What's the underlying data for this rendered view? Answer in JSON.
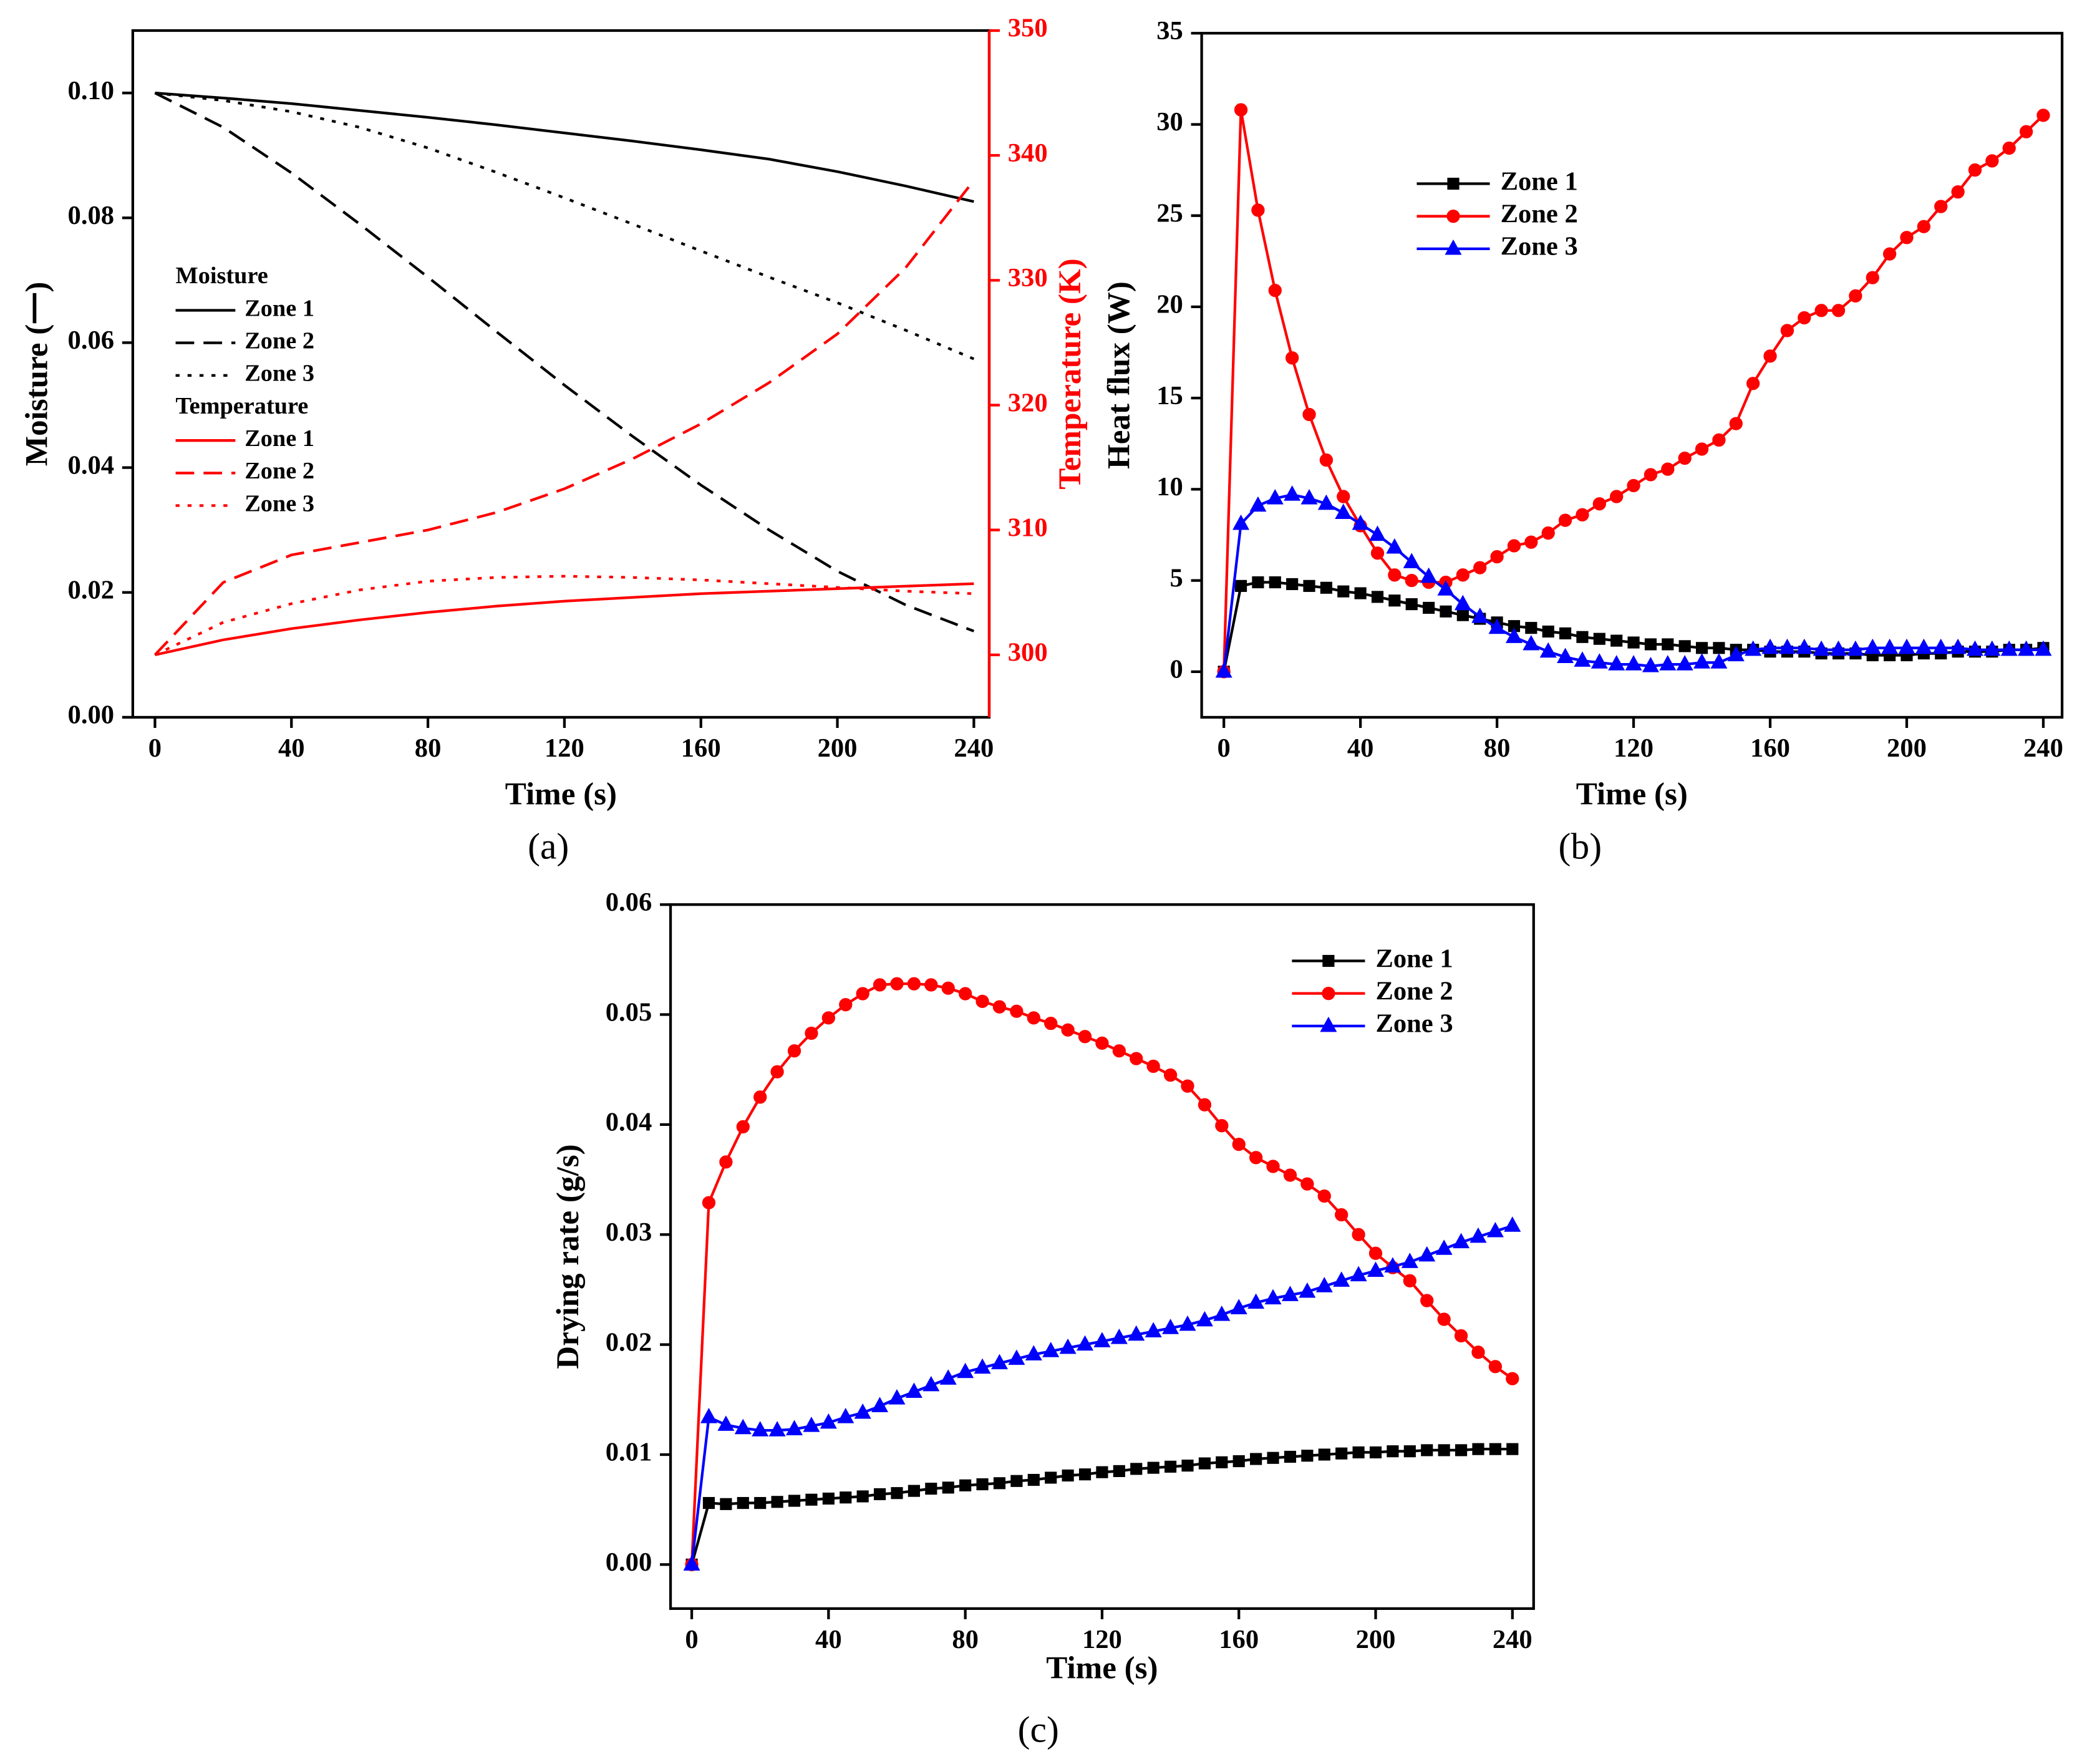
{
  "chart_data": [
    {
      "type": "line",
      "label": "(a)",
      "x_label": "Time (s)",
      "y_label": "Moisture (一)",
      "y2_label": "Temperature (K)",
      "y2_color": "#ff0000",
      "legend": "center-left",
      "legend_titles": [
        "Moisture",
        "Temperature"
      ],
      "xlim": [
        -6.5,
        244.5
      ],
      "xticks": [
        0,
        40,
        80,
        120,
        160,
        200,
        240
      ],
      "ylim": [
        0,
        0.11
      ],
      "yticks": [
        {
          "value": 0,
          "label": "0.00"
        },
        {
          "value": 0.02,
          "label": "0.02"
        },
        {
          "value": 0.04,
          "label": "0.04"
        },
        {
          "value": 0.06,
          "label": "0.06"
        },
        {
          "value": 0.08,
          "label": "0.08"
        },
        {
          "value": 0.1,
          "label": "0.10"
        }
      ],
      "y2lim": [
        295,
        350
      ],
      "y2ticks": [
        300,
        310,
        320,
        330,
        340,
        350
      ],
      "x": [
        0,
        20,
        40,
        60,
        80,
        100,
        120,
        140,
        160,
        180,
        200,
        220,
        240
      ],
      "series": [
        {
          "name": "Zone 1",
          "color": "#000000",
          "dash": "solid",
          "values": [
            0.1,
            0.0992,
            0.0983,
            0.0972,
            0.0961,
            0.0949,
            0.0936,
            0.0923,
            0.0909,
            0.0894,
            0.0874,
            0.0851,
            0.0826
          ]
        },
        {
          "name": "Zone 2",
          "color": "#000000",
          "dash": "dashed",
          "values": [
            0.1,
            0.0945,
            0.0872,
            0.079,
            0.0705,
            0.0618,
            0.0532,
            0.045,
            0.0372,
            0.03,
            0.0234,
            0.018,
            0.0138
          ]
        },
        {
          "name": "Zone 3",
          "color": "#000000",
          "dash": "dotted",
          "values": [
            0.1,
            0.0988,
            0.097,
            0.0945,
            0.0912,
            0.0873,
            0.0832,
            0.079,
            0.0747,
            0.0705,
            0.0664,
            0.062,
            0.0574
          ]
        },
        {
          "name": "Zone 1",
          "color": "#ff0000",
          "dash": "solid",
          "axis": "y2",
          "values": [
            300,
            301.2,
            302.1,
            302.8,
            303.4,
            303.9,
            304.3,
            304.6,
            304.9,
            305.1,
            305.3,
            305.5,
            305.7
          ]
        },
        {
          "name": "Zone 2",
          "color": "#ff0000",
          "dash": "dashed",
          "axis": "y2",
          "values": [
            300,
            305.8,
            308,
            309,
            310,
            311.4,
            313.3,
            315.7,
            318.5,
            321.8,
            325.7,
            331,
            338
          ]
        },
        {
          "name": "Zone 3",
          "color": "#ff0000",
          "dash": "dotted",
          "axis": "y2",
          "values": [
            300,
            302.6,
            304.1,
            305.2,
            305.9,
            306.2,
            306.3,
            306.2,
            306,
            305.7,
            305.4,
            305.1,
            304.9
          ]
        }
      ]
    },
    {
      "type": "line",
      "label": "(b)",
      "x_label": "Time (s)",
      "y_label": "Heat flux (W)",
      "legend": "upper-left",
      "xlim": [
        -6.5,
        245.5
      ],
      "xticks": [
        0,
        40,
        80,
        120,
        160,
        200,
        240
      ],
      "ylim": [
        -2.5,
        35
      ],
      "yticks": [
        0,
        5,
        10,
        15,
        20,
        25,
        30,
        35
      ],
      "x": [
        0,
        5,
        10,
        15,
        20,
        25,
        30,
        35,
        40,
        45,
        50,
        55,
        60,
        65,
        70,
        75,
        80,
        85,
        90,
        95,
        100,
        105,
        110,
        115,
        120,
        125,
        130,
        135,
        140,
        145,
        150,
        155,
        160,
        165,
        170,
        175,
        180,
        185,
        190,
        195,
        200,
        205,
        210,
        215,
        220,
        225,
        230,
        235,
        240
      ],
      "series": [
        {
          "name": "Zone 1",
          "color": "#000000",
          "marker": "square",
          "values": [
            0,
            4.7,
            4.9,
            4.9,
            4.8,
            4.7,
            4.6,
            4.4,
            4.3,
            4.1,
            3.9,
            3.7,
            3.5,
            3.3,
            3.1,
            2.9,
            2.7,
            2.5,
            2.4,
            2.2,
            2.1,
            1.9,
            1.8,
            1.7,
            1.6,
            1.5,
            1.5,
            1.4,
            1.3,
            1.3,
            1.2,
            1.2,
            1.1,
            1.1,
            1.1,
            1.0,
            1.0,
            1.0,
            0.9,
            0.9,
            0.9,
            1.0,
            1.0,
            1.1,
            1.1,
            1.1,
            1.2,
            1.2,
            1.3
          ]
        },
        {
          "name": "Zone 2",
          "color": "#ff0000",
          "marker": "circle",
          "values": [
            0,
            30.8,
            25.3,
            20.9,
            17.2,
            14.1,
            11.6,
            9.6,
            8.0,
            6.5,
            5.3,
            5.0,
            4.9,
            4.9,
            5.3,
            5.7,
            6.3,
            6.9,
            7.1,
            7.6,
            8.3,
            8.6,
            9.2,
            9.6,
            10.2,
            10.8,
            11.1,
            11.7,
            12.2,
            12.7,
            13.6,
            15.8,
            17.3,
            18.7,
            19.4,
            19.8,
            19.8,
            20.6,
            21.6,
            22.9,
            23.8,
            24.4,
            25.5,
            26.3,
            27.5,
            28.0,
            28.7,
            29.6,
            30.5
          ]
        },
        {
          "name": "Zone 3",
          "color": "#0000ff",
          "marker": "triangle",
          "values": [
            0,
            8.1,
            9.1,
            9.5,
            9.7,
            9.5,
            9.2,
            8.7,
            8.1,
            7.5,
            6.8,
            6.0,
            5.2,
            4.5,
            3.7,
            3.0,
            2.4,
            1.9,
            1.5,
            1.1,
            0.8,
            0.6,
            0.5,
            0.4,
            0.4,
            0.3,
            0.4,
            0.4,
            0.5,
            0.5,
            0.9,
            1.2,
            1.3,
            1.3,
            1.3,
            1.2,
            1.2,
            1.2,
            1.3,
            1.3,
            1.3,
            1.3,
            1.3,
            1.3,
            1.2,
            1.2,
            1.2,
            1.2,
            1.2
          ]
        }
      ]
    },
    {
      "type": "line",
      "label": "(c)",
      "x_label": "Time (s)",
      "y_label": "Drying rate (g/s)",
      "legend": "upper-right",
      "xlim": [
        -6.2,
        246.2
      ],
      "xticks": [
        0,
        40,
        80,
        120,
        160,
        200,
        240
      ],
      "ylim": [
        -0.004,
        0.06
      ],
      "yticks": [
        {
          "value": 0,
          "label": "0.00"
        },
        {
          "value": 0.01,
          "label": "0.01"
        },
        {
          "value": 0.02,
          "label": "0.02"
        },
        {
          "value": 0.03,
          "label": "0.03"
        },
        {
          "value": 0.04,
          "label": "0.04"
        },
        {
          "value": 0.05,
          "label": "0.05"
        },
        {
          "value": 0.06,
          "label": "0.06"
        }
      ],
      "x": [
        0,
        5,
        10,
        15,
        20,
        25,
        30,
        35,
        40,
        45,
        50,
        55,
        60,
        65,
        70,
        75,
        80,
        85,
        90,
        95,
        100,
        105,
        110,
        115,
        120,
        125,
        130,
        135,
        140,
        145,
        150,
        155,
        160,
        165,
        170,
        175,
        180,
        185,
        190,
        195,
        200,
        205,
        210,
        215,
        220,
        225,
        230,
        235,
        240
      ],
      "series": [
        {
          "name": "Zone 1",
          "color": "#000000",
          "marker": "square",
          "values": [
            0,
            0.0056,
            0.0055,
            0.0056,
            0.0056,
            0.0057,
            0.0058,
            0.0059,
            0.006,
            0.0061,
            0.0062,
            0.0064,
            0.0065,
            0.0067,
            0.0069,
            0.007,
            0.0072,
            0.0073,
            0.0074,
            0.0076,
            0.0077,
            0.0079,
            0.0081,
            0.0082,
            0.0084,
            0.0085,
            0.0087,
            0.0088,
            0.0089,
            0.009,
            0.0092,
            0.0093,
            0.0094,
            0.0096,
            0.0097,
            0.0098,
            0.0099,
            0.01,
            0.0101,
            0.0102,
            0.0102,
            0.0103,
            0.0103,
            0.0104,
            0.0104,
            0.0104,
            0.0105,
            0.0105,
            0.0105
          ]
        },
        {
          "name": "Zone 2",
          "color": "#ff0000",
          "marker": "circle",
          "values": [
            0,
            0.0329,
            0.0366,
            0.0398,
            0.0425,
            0.0448,
            0.0467,
            0.0483,
            0.0497,
            0.0509,
            0.0519,
            0.0527,
            0.0528,
            0.0528,
            0.0527,
            0.0524,
            0.0519,
            0.0512,
            0.0507,
            0.0503,
            0.0497,
            0.0492,
            0.0486,
            0.048,
            0.0474,
            0.0467,
            0.046,
            0.0453,
            0.0445,
            0.0435,
            0.0418,
            0.0399,
            0.0382,
            0.037,
            0.0362,
            0.0354,
            0.0346,
            0.0335,
            0.0318,
            0.03,
            0.0283,
            0.027,
            0.0258,
            0.024,
            0.0223,
            0.0208,
            0.0193,
            0.018,
            0.0169
          ]
        },
        {
          "name": "Zone 3",
          "color": "#0000ff",
          "marker": "triangle",
          "values": [
            0,
            0.0134,
            0.0127,
            0.0124,
            0.0122,
            0.0122,
            0.0123,
            0.0126,
            0.0129,
            0.0134,
            0.0138,
            0.0144,
            0.0151,
            0.0157,
            0.0163,
            0.0169,
            0.0175,
            0.0179,
            0.0183,
            0.0187,
            0.0191,
            0.0194,
            0.0197,
            0.02,
            0.0203,
            0.0206,
            0.0209,
            0.0212,
            0.0215,
            0.0218,
            0.0222,
            0.0227,
            0.0233,
            0.0238,
            0.0242,
            0.0245,
            0.0248,
            0.0253,
            0.0258,
            0.0263,
            0.0267,
            0.0271,
            0.0275,
            0.0281,
            0.0287,
            0.0293,
            0.0298,
            0.0303,
            0.0308
          ]
        }
      ]
    }
  ]
}
